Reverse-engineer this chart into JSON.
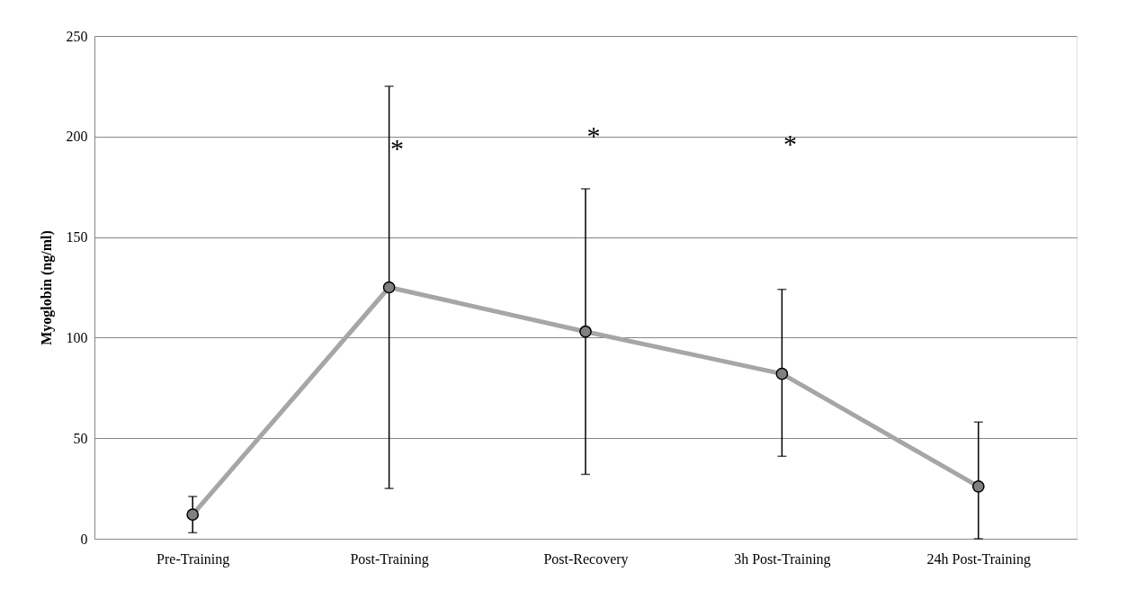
{
  "chart_data": {
    "type": "line",
    "ylabel": "Myoglobin (ng/ml)",
    "categories": [
      "Pre-Training",
      "Post-Training",
      "Post-Recovery",
      "3h Post-Training",
      "24h Post-Training"
    ],
    "series": [
      {
        "color": "#a6a6a6",
        "values": [
          12,
          125,
          103,
          82,
          26
        ],
        "errors": [
          [
            3,
            21
          ],
          [
            25,
            225
          ],
          [
            32,
            174
          ],
          [
            41,
            124
          ],
          [
            0,
            58
          ]
        ]
      }
    ],
    "marker": "circle",
    "ylim": [
      0,
      250
    ],
    "yticks": [
      0,
      50,
      100,
      150,
      200,
      250
    ],
    "grid": "y",
    "annotations": [
      "*",
      "*",
      "*"
    ]
  }
}
